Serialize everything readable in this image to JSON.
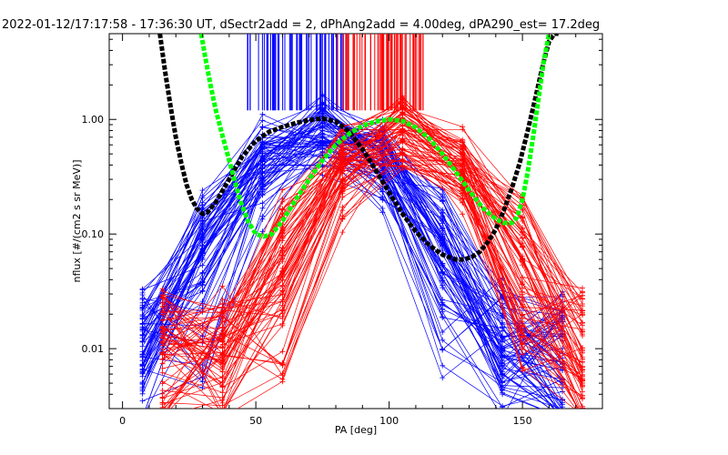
{
  "chart_data": {
    "type": "line",
    "title": "2022-01-12/17:17:58 - 17:36:30 UT, dSectr2add = 2, dPhAng2add = 4.00deg, dPA290_est=  17.2deg",
    "xlabel": "PA [deg]",
    "ylabel": "nflux [#/(cm2 s sr MeV)]",
    "xscale": "linear",
    "yscale": "log",
    "xlim": [
      -5,
      180
    ],
    "ylim": [
      0.003,
      5.6
    ],
    "xticks": [
      0,
      50,
      100,
      150
    ],
    "xtick_labels": [
      "0",
      "50",
      "100",
      "150"
    ],
    "yticks": [
      0.01,
      0.1,
      1.0
    ],
    "ytick_labels": [
      "0.01",
      "0.10",
      "1.00"
    ],
    "pa_grid": [
      7.5,
      30,
      52.5,
      75,
      97.5,
      120,
      142.5,
      165
    ],
    "blue_pa_grid": [
      7.5,
      30,
      52.5,
      75,
      97.5,
      120,
      142.5,
      165
    ],
    "red_pa_grid": [
      15,
      37.5,
      60,
      82.5,
      105,
      127.5,
      150,
      172.5
    ],
    "blue_profile": {
      "name": "blue-sector-profiles",
      "color": "#0000ff",
      "center_pa": 75,
      "width_deg": 28,
      "count": 70
    },
    "red_profile": {
      "name": "red-sector-profiles",
      "color": "#ff0000",
      "center_pa": 105,
      "width_deg": 28,
      "count": 70
    },
    "blue_marks": {
      "pa_min": 46,
      "pa_max": 84,
      "count": 60,
      "flux_top": 5.6,
      "flux_bottom": 1.2
    },
    "red_marks": {
      "pa_min": 80,
      "pa_max": 113,
      "count": 60,
      "flux_top": 5.6,
      "flux_bottom": 1.2
    },
    "series": [
      {
        "name": "black-fit",
        "color": "#000000",
        "pa": [
          14,
          16,
          18,
          20,
          22,
          24,
          26,
          28,
          30,
          32,
          35,
          40,
          45,
          50,
          55,
          60,
          65,
          70,
          75,
          80,
          85,
          90,
          95,
          100,
          105,
          110,
          115,
          120,
          125,
          128,
          131,
          134,
          137,
          140,
          143,
          146,
          149,
          152,
          155,
          158,
          160,
          162,
          163.5
        ],
        "flux": [
          5.6,
          2.6,
          1.3,
          0.7,
          0.42,
          0.27,
          0.2,
          0.165,
          0.15,
          0.155,
          0.19,
          0.3,
          0.48,
          0.65,
          0.78,
          0.86,
          0.93,
          0.99,
          1.02,
          0.96,
          0.78,
          0.55,
          0.36,
          0.23,
          0.15,
          0.105,
          0.08,
          0.066,
          0.06,
          0.06,
          0.063,
          0.07,
          0.085,
          0.11,
          0.16,
          0.25,
          0.42,
          0.8,
          1.6,
          3.2,
          4.8,
          5.6,
          5.6
        ]
      },
      {
        "name": "green-fit",
        "color": "#00ff00",
        "pa": [
          29.5,
          31,
          33,
          35,
          38,
          41,
          44,
          47,
          50,
          53,
          56,
          60,
          65,
          70,
          75,
          80,
          85,
          90,
          95,
          100,
          105,
          110,
          115,
          120,
          125,
          130,
          135,
          140,
          143,
          146,
          148,
          150,
          152,
          154,
          156,
          158,
          160
        ],
        "flux": [
          5.6,
          3.5,
          2.0,
          1.2,
          0.65,
          0.36,
          0.2,
          0.13,
          0.1,
          0.095,
          0.1,
          0.13,
          0.2,
          0.3,
          0.44,
          0.6,
          0.75,
          0.88,
          0.96,
          1.0,
          0.97,
          0.85,
          0.68,
          0.5,
          0.35,
          0.24,
          0.17,
          0.135,
          0.125,
          0.125,
          0.14,
          0.2,
          0.35,
          0.7,
          1.5,
          3.2,
          5.6
        ]
      }
    ]
  }
}
